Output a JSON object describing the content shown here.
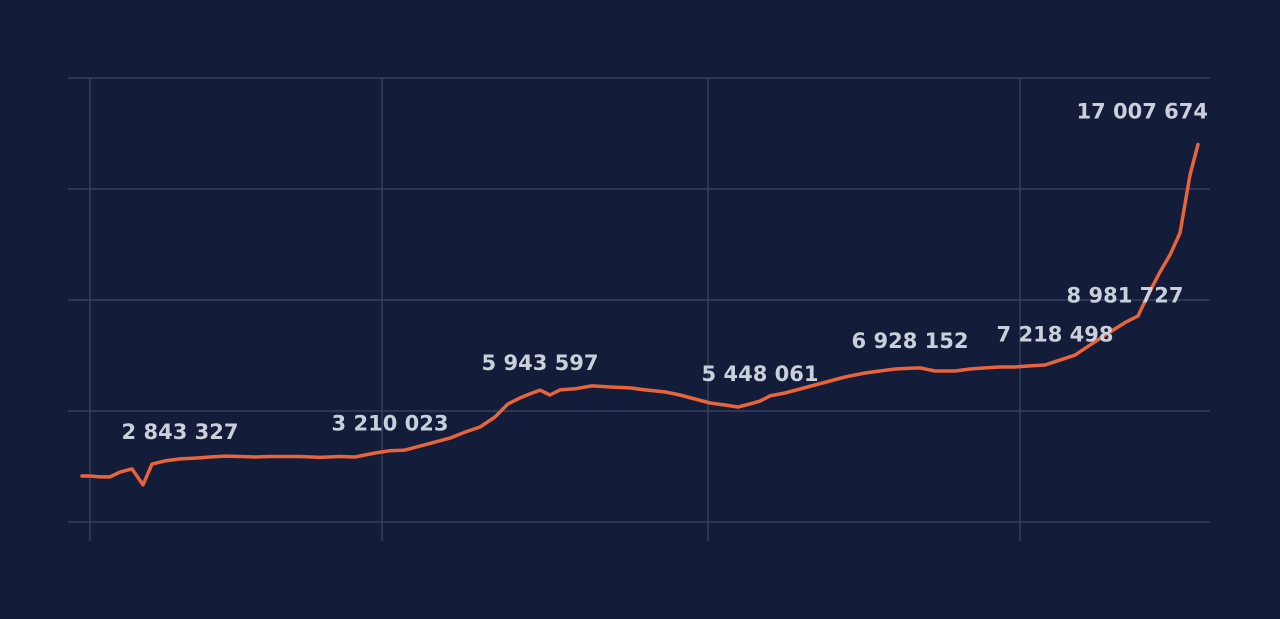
{
  "chart_data": {
    "type": "line",
    "color": "#e8643a",
    "grid": true,
    "x": [
      2,
      10,
      20,
      30,
      40,
      52,
      63,
      72,
      85,
      100,
      115,
      130,
      145,
      160,
      175,
      190,
      205,
      220,
      240,
      260,
      275,
      295,
      310,
      325,
      340,
      355,
      370,
      385,
      400,
      415,
      428,
      440,
      450,
      460,
      470,
      480,
      495,
      512,
      530,
      550,
      565,
      585,
      600,
      615,
      630,
      645,
      658,
      670,
      680,
      690,
      705,
      720,
      735,
      750,
      765,
      785,
      800,
      815,
      830,
      840,
      855,
      875,
      890,
      905,
      920,
      935,
      950,
      965,
      975,
      995,
      1010,
      1025,
      1045,
      1058,
      1068,
      1080,
      1090,
      1100,
      1110,
      1118
    ],
    "values": [
      2070000,
      2070000,
      2030000,
      2030000,
      2250000,
      2390000,
      1670000,
      2610000,
      2750000,
      2843327,
      2880000,
      2930000,
      2970000,
      2950000,
      2930000,
      2950000,
      2950000,
      2950000,
      2910000,
      2950000,
      2930000,
      3110000,
      3210023,
      3240000,
      3420000,
      3600000,
      3780000,
      4050000,
      4280000,
      4730000,
      5320000,
      5590000,
      5770000,
      5943597,
      5720000,
      5950000,
      6000000,
      6130000,
      6080000,
      6040000,
      5950000,
      5860000,
      5720000,
      5540000,
      5360000,
      5270000,
      5180000,
      5320000,
      5448061,
      5680000,
      5810000,
      5990000,
      6170000,
      6350000,
      6530000,
      6710000,
      6800000,
      6890000,
      6928152,
      6940000,
      6800000,
      6800000,
      6890000,
      6940000,
      6980000,
      6980000,
      7030000,
      7070000,
      7218498,
      7520000,
      7970000,
      8420000,
      8981727,
      9280000,
      10230000,
      11260000,
      12030000,
      13020000,
      15630000,
      17007674
    ],
    "value_labels": [
      null,
      null,
      null,
      null,
      null,
      null,
      null,
      null,
      null,
      "2 843 327",
      null,
      null,
      null,
      null,
      null,
      null,
      null,
      null,
      null,
      null,
      null,
      null,
      "3 210 023",
      null,
      null,
      null,
      null,
      null,
      null,
      null,
      null,
      null,
      null,
      "5 943 597",
      null,
      null,
      null,
      null,
      null,
      null,
      null,
      null,
      null,
      null,
      null,
      null,
      null,
      null,
      "5 448 061",
      null,
      null,
      null,
      null,
      null,
      null,
      null,
      null,
      null,
      "6 928 152",
      null,
      null,
      null,
      null,
      null,
      null,
      null,
      null,
      null,
      "7 218 498",
      null,
      null,
      null,
      "8 981 727",
      null,
      null,
      null,
      null,
      null,
      null,
      "17 007 674"
    ],
    "xlim": [
      -12,
      1130
    ],
    "xticks": [
      10,
      302,
      628,
      940
    ],
    "ylim": [
      0,
      20000000
    ],
    "yticks": [
      0,
      5000000,
      10000000,
      15000000,
      20000000
    ]
  }
}
